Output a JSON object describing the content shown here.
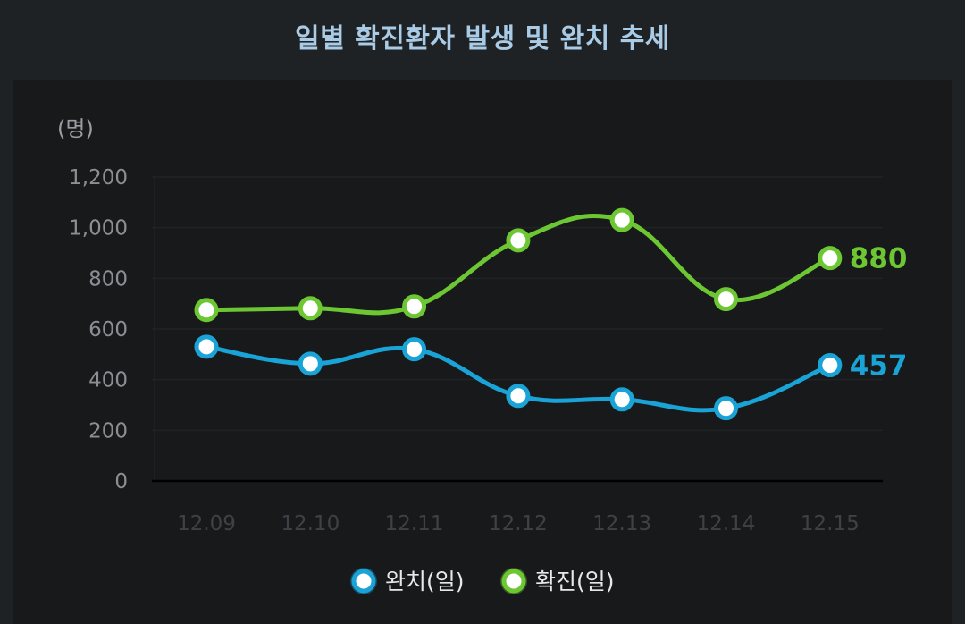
{
  "chart_data": {
    "type": "line",
    "title": "일별 확진환자 발생 및 완치 추세",
    "unit_label": "(명)",
    "categories": [
      "12.09",
      "12.10",
      "12.11",
      "12.12",
      "12.13",
      "12.14",
      "12.15"
    ],
    "y_ticks": [
      "0",
      "200",
      "400",
      "600",
      "800",
      "1,000",
      "1,200"
    ],
    "ylim": [
      0,
      1200
    ],
    "grid": true,
    "legend_position": "bottom",
    "series": [
      {
        "name": "완치(일)",
        "color": "#1aa3d6",
        "values": [
          530,
          463,
          520,
          336,
          322,
          287,
          457
        ],
        "end_label": "457"
      },
      {
        "name": "확진(일)",
        "color": "#6cc733",
        "values": [
          675,
          682,
          689,
          950,
          1030,
          718,
          880
        ],
        "end_label": "880"
      }
    ]
  }
}
